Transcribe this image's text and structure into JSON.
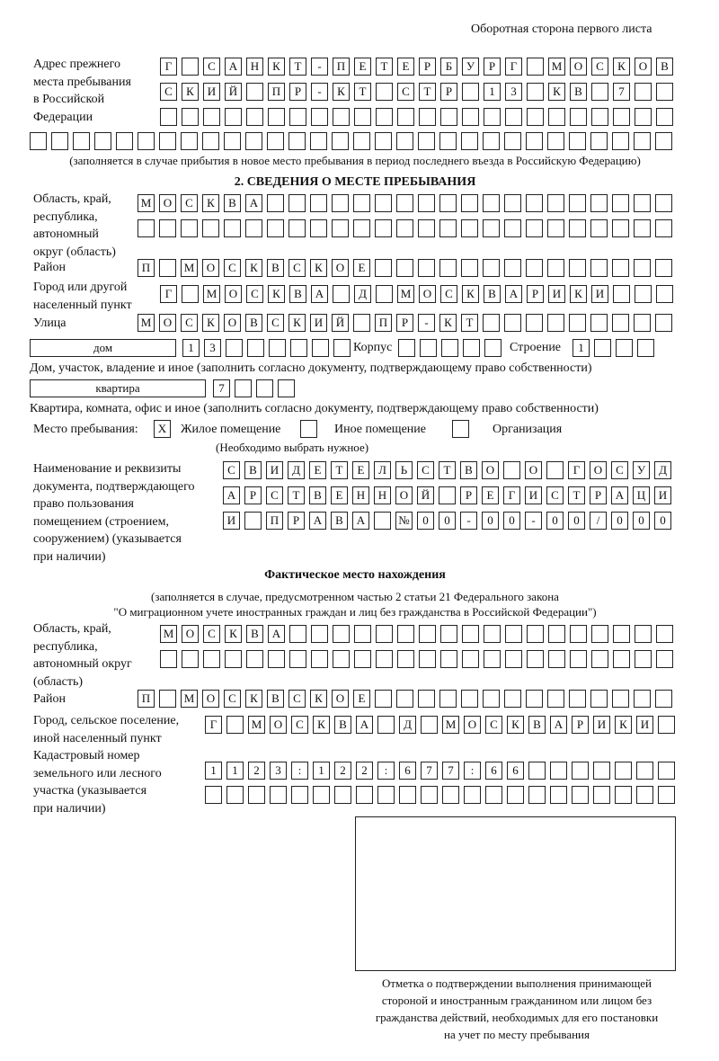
{
  "header": "Оборотная сторона первого листа",
  "prev_address": {
    "label": "Адрес прежнего\nместа пребывания\nв Российской\nФедерации",
    "rows": [
      [
        "Г",
        " ",
        "С",
        "А",
        "Н",
        "К",
        "Т",
        "-",
        "П",
        "Е",
        "Т",
        "Е",
        "Р",
        "Б",
        "У",
        "Р",
        "Г",
        " ",
        "М",
        "О",
        "С",
        "К",
        "О",
        "В"
      ],
      [
        "С",
        "К",
        "И",
        "Й",
        " ",
        "П",
        "Р",
        "-",
        "К",
        "Т",
        " ",
        "С",
        "Т",
        "Р",
        " ",
        "1",
        "3",
        " ",
        "К",
        "В",
        " ",
        "7"
      ],
      [],
      []
    ],
    "note": "(заполняется в случае прибытия в новое место пребывания в период последнего въезда в Российскую Федерацию)"
  },
  "section2": {
    "title": "2. СВЕДЕНИЯ О МЕСТЕ ПРЕБЫВАНИЯ",
    "region_label": "Область, край,\nреспублика,\nавтономный\nокруг (область)",
    "region_rows": [
      [
        "М",
        "О",
        "С",
        "К",
        "В",
        "А"
      ],
      []
    ],
    "district_label": "Район",
    "district": [
      "П",
      " ",
      "М",
      "О",
      "С",
      "К",
      "В",
      "С",
      "К",
      "О",
      "Е"
    ],
    "city_label": "Город или другой\nнаселенный пункт",
    "city": [
      "Г",
      " ",
      "М",
      "О",
      "С",
      "К",
      "В",
      "А",
      " ",
      "Д",
      " ",
      "М",
      "О",
      "С",
      "К",
      "В",
      "А",
      "Р",
      "И",
      "К",
      "И"
    ],
    "street_label": "Улица",
    "street": [
      "М",
      "О",
      "С",
      "К",
      "О",
      "В",
      "С",
      "К",
      "И",
      "Й",
      " ",
      "П",
      "Р",
      "-",
      "К",
      "Т"
    ],
    "house_type": "дом",
    "house": [
      "1",
      "3"
    ],
    "korpus_label": "Корпус",
    "korpus": [],
    "stroenie_label": "Строение",
    "stroenie": [
      "1"
    ],
    "house_note": "Дом, участок, владение и иное (заполнить согласно документу, подтверждающему право собственности)",
    "flat_type": "квартира",
    "flat": [
      "7"
    ],
    "flat_note": "Квартира, комната, офис и иное (заполнить согласно документу, подтверждающему право собственности)",
    "place_label": "Место пребывания:",
    "options": [
      {
        "label": "Жилое помещение",
        "mark": "X"
      },
      {
        "label": "Иное помещение",
        "mark": ""
      },
      {
        "label": "Организация",
        "mark": ""
      }
    ],
    "place_note": "(Необходимо выбрать нужное)",
    "doc_label": "Наименование и реквизиты\nдокумента, подтверждающего\nправо пользования\nпомещением (строением,\nсооружением) (указывается\nпри наличии)",
    "doc_rows": [
      [
        "С",
        "В",
        "И",
        "Д",
        "Е",
        "Т",
        "Е",
        "Л",
        "Ь",
        "С",
        "Т",
        "В",
        "О",
        " ",
        "О",
        " ",
        "Г",
        "О",
        "С",
        "У",
        "Д"
      ],
      [
        "А",
        "Р",
        "С",
        "Т",
        "В",
        "Е",
        "Н",
        "Н",
        "О",
        "Й",
        " ",
        "Р",
        "Е",
        "Г",
        "И",
        "С",
        "Т",
        "Р",
        "А",
        "Ц",
        "И"
      ],
      [
        "И",
        " ",
        "П",
        "Р",
        "А",
        "В",
        "А",
        " ",
        "№",
        "0",
        "0",
        "-",
        "0",
        "0",
        "-",
        "0",
        "0",
        "/",
        "0",
        "0",
        "0"
      ]
    ]
  },
  "actual": {
    "title": "Фактическое место нахождения",
    "note1": "(заполняется в случае, предусмотренном частью 2 статьи 21 Федерального закона",
    "note2": "\"О миграционном учете иностранных граждан и лиц без гражданства в Российской Федерации\")",
    "region_label": "Область, край,\nреспублика,\nавтономный округ\n(область)",
    "region_rows": [
      [
        "М",
        "О",
        "С",
        "К",
        "В",
        "А"
      ],
      []
    ],
    "district_label": "Район",
    "district": [
      "П",
      " ",
      "М",
      "О",
      "С",
      "К",
      "В",
      "С",
      "К",
      "О",
      "Е"
    ],
    "city_label": "Город, сельское поселение,\nиной населенный пункт",
    "city": [
      "Г",
      " ",
      "М",
      "О",
      "С",
      "К",
      "В",
      "А",
      " ",
      "Д",
      " ",
      "М",
      "О",
      "С",
      "К",
      "В",
      "А",
      "Р",
      "И",
      "К",
      "И"
    ],
    "cadastre_label": "Кадастровый номер\nземельного или лесного\nучастка (указывается\nпри наличии)",
    "cadastre_rows": [
      [
        "1",
        "1",
        "2",
        "3",
        ":",
        "1",
        "2",
        "2",
        ":",
        "6",
        "7",
        "7",
        ":",
        "6",
        "6"
      ],
      []
    ]
  },
  "stamp_caption": "Отметка о подтверждении выполнения принимающей\nстороной и иностранным гражданином или лицом без\nгражданства действий, необходимых для его постановки\nна учет по месту пребывания"
}
